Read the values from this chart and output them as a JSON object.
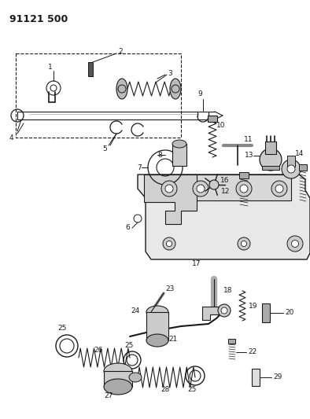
{
  "title": "91121 500",
  "bg_color": "#ffffff",
  "lc": "#1a1a1a",
  "fig_w": 3.94,
  "fig_h": 5.33,
  "dpi": 100,
  "imgW": 394,
  "imgH": 533
}
